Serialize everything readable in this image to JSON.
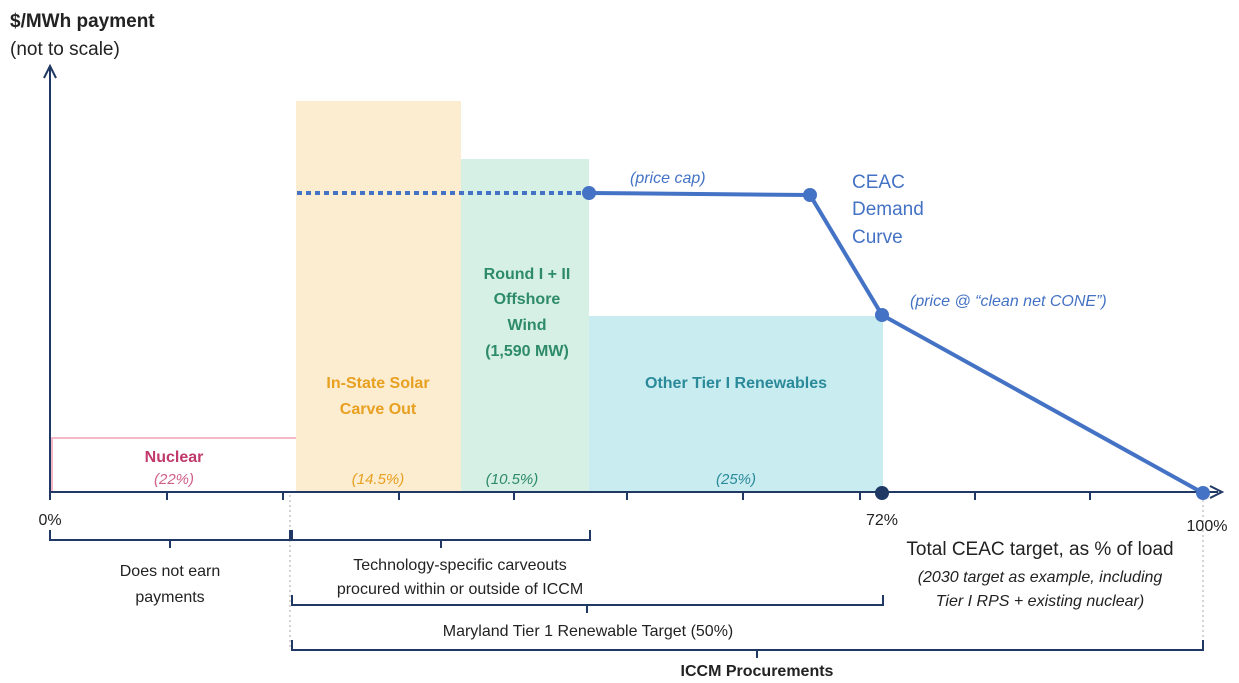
{
  "y_axis": {
    "label": "$/MWh payment",
    "note": "(not to scale)"
  },
  "x_axis": {
    "ticks": [
      "0%",
      "72%",
      "100%"
    ]
  },
  "blocks": [
    {
      "label": [
        "Nuclear"
      ],
      "share": "(22%)"
    },
    {
      "label": [
        "In-State Solar",
        "Carve Out"
      ],
      "share": "(14.5%)"
    },
    {
      "label": [
        "Round I + II",
        "Offshore",
        "Wind",
        "(1,590 MW)"
      ],
      "share": "(10.5%)"
    },
    {
      "label": [
        "Other Tier I Renewables"
      ],
      "share": "(25%)"
    }
  ],
  "curve": {
    "label": [
      "CEAC",
      "Demand",
      "Curve"
    ],
    "annotations": [
      "(price cap)",
      "(price @ “clean net CONE”)"
    ]
  },
  "brackets": [
    {
      "label": [
        "Does not earn",
        "payments"
      ]
    },
    {
      "label": [
        "Technology-specific carveouts",
        "procured within or outside of ICCM"
      ]
    },
    {
      "label": [
        "Maryland Tier 1 Renewable Target (50%)"
      ]
    },
    {
      "label": [
        "ICCM Procurements"
      ]
    }
  ],
  "target": {
    "title": "Total CEAC target, as % of load",
    "note": [
      "(2030 target as example, including",
      "Tier I RPS + existing nuclear)"
    ]
  }
}
